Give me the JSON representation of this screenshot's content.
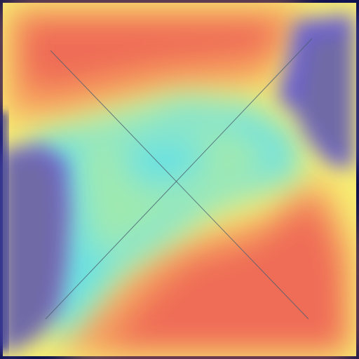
{
  "heatmap": {
    "colors": {
      "dark_navy_border": "#0b0f4a",
      "deep_blue": "#2f2f9a",
      "slate_purple": "#6f6ba6",
      "blue_purple": "#6c5fd2",
      "cyan": "#6be1e1",
      "mint_green": "#9fe9b0",
      "yellow": "#f7ee72",
      "orange": "#f7a15f",
      "red_orange": "#ef6c56",
      "line": "#4a5f70"
    }
  }
}
